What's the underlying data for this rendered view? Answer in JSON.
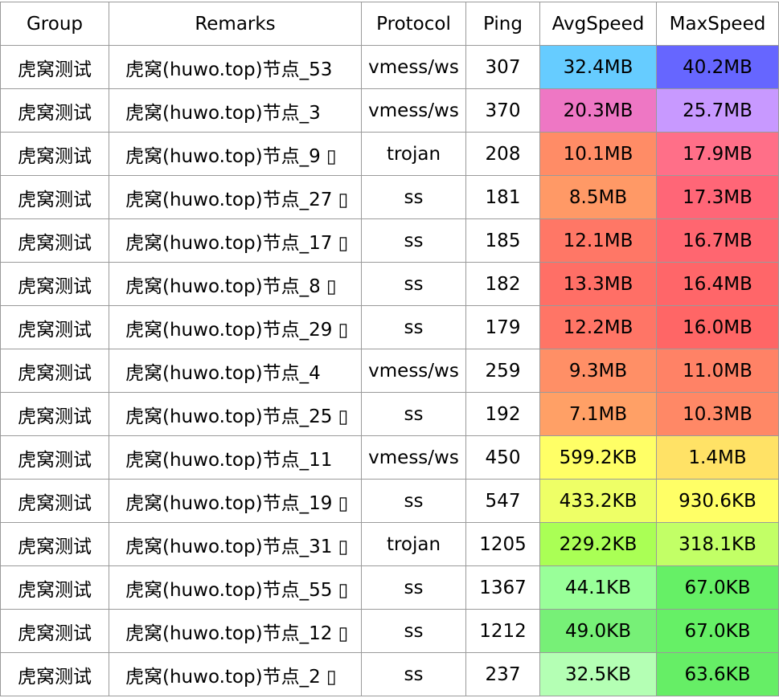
{
  "headers": {
    "group": "Group",
    "remarks": "Remarks",
    "protocol": "Protocol",
    "ping": "Ping",
    "avg": "AvgSpeed",
    "max": "MaxSpeed"
  },
  "rows": [
    {
      "group": "虎窝测试",
      "remarks": "虎窝(huwo.top)节点_53",
      "protocol": "vmess/ws",
      "ping": "307",
      "avg": "32.4MB",
      "max": "40.2MB",
      "avg_color": "#66ccff",
      "max_color": "#6666ff"
    },
    {
      "group": "虎窝测试",
      "remarks": "虎窝(huwo.top)节点_3",
      "protocol": "vmess/ws",
      "ping": "370",
      "avg": "20.3MB",
      "max": "25.7MB",
      "avg_color": "#ee77c4",
      "max_color": "#c899ff"
    },
    {
      "group": "虎窝测试",
      "remarks": "虎窝(huwo.top)节点_9 ▯",
      "protocol": "trojan",
      "ping": "208",
      "avg": "10.1MB",
      "max": "17.9MB",
      "avg_color": "#ff8c66",
      "max_color": "#ff6f88"
    },
    {
      "group": "虎窝测试",
      "remarks": "虎窝(huwo.top)节点_27 ▯",
      "protocol": "ss",
      "ping": "181",
      "avg": "8.5MB",
      "max": "17.3MB",
      "avg_color": "#ff9966",
      "max_color": "#ff6677"
    },
    {
      "group": "虎窝测试",
      "remarks": "虎窝(huwo.top)节点_17 ▯",
      "protocol": "ss",
      "ping": "185",
      "avg": "12.1MB",
      "max": "16.7MB",
      "avg_color": "#ff7766",
      "max_color": "#ff6670"
    },
    {
      "group": "虎窝测试",
      "remarks": "虎窝(huwo.top)节点_8 ▯",
      "protocol": "ss",
      "ping": "182",
      "avg": "13.3MB",
      "max": "16.4MB",
      "avg_color": "#ff6f66",
      "max_color": "#ff6669"
    },
    {
      "group": "虎窝测试",
      "remarks": "虎窝(huwo.top)节点_29 ▯",
      "protocol": "ss",
      "ping": "179",
      "avg": "12.2MB",
      "max": "16.0MB",
      "avg_color": "#ff7566",
      "max_color": "#ff6666"
    },
    {
      "group": "虎窝测试",
      "remarks": "虎窝(huwo.top)节点_4",
      "protocol": "vmess/ws",
      "ping": "259",
      "avg": "9.3MB",
      "max": "11.0MB",
      "avg_color": "#ff8f66",
      "max_color": "#ff8266"
    },
    {
      "group": "虎窝测试",
      "remarks": "虎窝(huwo.top)节点_25 ▯",
      "protocol": "ss",
      "ping": "192",
      "avg": "7.1MB",
      "max": "10.3MB",
      "avg_color": "#ffa066",
      "max_color": "#ff8866"
    },
    {
      "group": "虎窝测试",
      "remarks": "虎窝(huwo.top)节点_11",
      "protocol": "vmess/ws",
      "ping": "450",
      "avg": "599.2KB",
      "max": "1.4MB",
      "avg_color": "#ffff66",
      "max_color": "#ffe266"
    },
    {
      "group": "虎窝测试",
      "remarks": "虎窝(huwo.top)节点_19 ▯",
      "protocol": "ss",
      "ping": "547",
      "avg": "433.2KB",
      "max": "930.6KB",
      "avg_color": "#eeff66",
      "max_color": "#ffff66"
    },
    {
      "group": "虎窝测试",
      "remarks": "虎窝(huwo.top)节点_31 ▯",
      "protocol": "trojan",
      "ping": "1205",
      "avg": "229.2KB",
      "max": "318.1KB",
      "avg_color": "#aaff55",
      "max_color": "#c2ff66"
    },
    {
      "group": "虎窝测试",
      "remarks": "虎窝(huwo.top)节点_55 ▯",
      "protocol": "ss",
      "ping": "1367",
      "avg": "44.1KB",
      "max": "67.0KB",
      "avg_color": "#99ff99",
      "max_color": "#66f066"
    },
    {
      "group": "虎窝测试",
      "remarks": "虎窝(huwo.top)节点_12 ▯",
      "protocol": "ss",
      "ping": "1212",
      "avg": "49.0KB",
      "max": "67.0KB",
      "avg_color": "#77f077",
      "max_color": "#66f066"
    },
    {
      "group": "虎窝测试",
      "remarks": "虎窝(huwo.top)节点_2 ▯",
      "protocol": "ss",
      "ping": "237",
      "avg": "32.5KB",
      "max": "63.6KB",
      "avg_color": "#b4ffb4",
      "max_color": "#66ee66"
    }
  ]
}
